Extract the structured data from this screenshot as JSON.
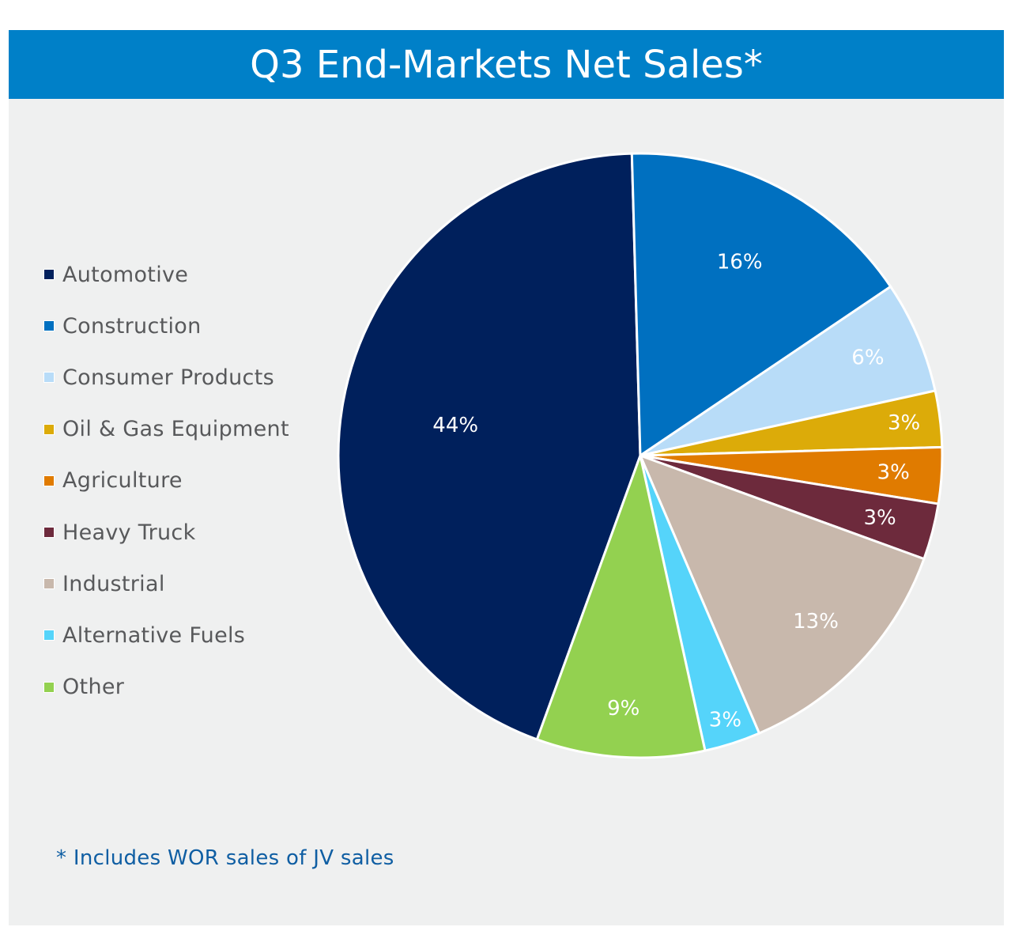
{
  "title": "Q3 End-Markets Net Sales*",
  "footnote": "* Includes WOR sales of JV sales",
  "colors": {
    "title_bar": "#0080c8",
    "background": "#eff0f0",
    "legend_text": "#58595b",
    "footnote_text": "#0f5ea3",
    "slice_label": "#ffffff",
    "slice_border": "#ffffff"
  },
  "chart_data": {
    "type": "pie",
    "title": "Q3 End-Markets Net Sales*",
    "legend_position": "left",
    "categories": [
      "Automotive",
      "Construction",
      "Consumer Products",
      "Oil & Gas Equipment",
      "Agriculture",
      "Heavy Truck",
      "Industrial",
      "Alternative Fuels",
      "Other"
    ],
    "values": [
      44,
      16,
      6,
      3,
      3,
      3,
      13,
      3,
      9
    ],
    "value_labels": [
      "44%",
      "16%",
      "6%",
      "3%",
      "3%",
      "3%",
      "13%",
      "3%",
      "9%"
    ],
    "slice_colors": [
      "#00205c",
      "#0070c0",
      "#b8dcf8",
      "#dcab09",
      "#e07b00",
      "#6d2a3c",
      "#c8b8ac",
      "#55d4fa",
      "#93d150"
    ],
    "legend": [
      {
        "label": "Automotive",
        "color": "#00205c"
      },
      {
        "label": "Construction",
        "color": "#0070c0"
      },
      {
        "label": "Consumer Products",
        "color": "#b8dcf8"
      },
      {
        "label": "Oil & Gas Equipment",
        "color": "#dcab09"
      },
      {
        "label": "Agriculture",
        "color": "#e07b00"
      },
      {
        "label": "Heavy Truck",
        "color": "#6d2a3c"
      },
      {
        "label": "Industrial",
        "color": "#c8b8ac"
      },
      {
        "label": "Alternative Fuels",
        "color": "#55d4fa"
      },
      {
        "label": "Other",
        "color": "#93d150"
      }
    ]
  }
}
